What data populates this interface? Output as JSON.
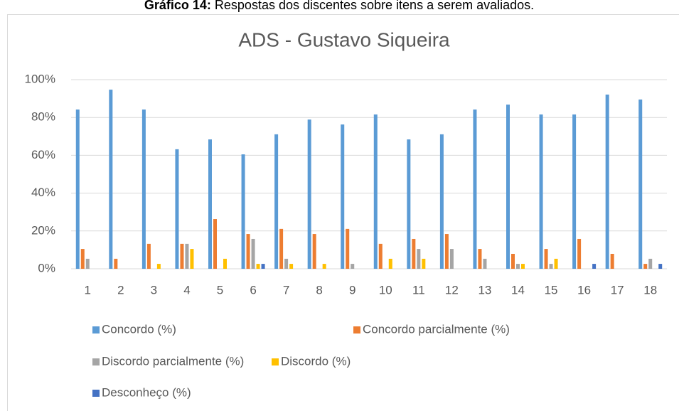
{
  "caption": {
    "label": "Gráfico 14:",
    "text": "Respostas dos discentes sobre itens a serem avaliados."
  },
  "chart_data": {
    "type": "bar",
    "title": "ADS - Gustavo Siqueira",
    "categories": [
      "1",
      "2",
      "3",
      "4",
      "5",
      "6",
      "7",
      "8",
      "9",
      "10",
      "11",
      "12",
      "13",
      "14",
      "15",
      "16",
      "17",
      "18"
    ],
    "series": [
      {
        "name": "Concordo (%)",
        "color": "#5b9bd5",
        "values": [
          84.2,
          94.7,
          84.2,
          63.2,
          68.4,
          60.5,
          71.1,
          78.9,
          76.3,
          81.6,
          68.4,
          71.1,
          84.2,
          86.8,
          81.6,
          81.6,
          92.1,
          89.5
        ]
      },
      {
        "name": "Concordo parcialmente (%)",
        "color": "#ed7d31",
        "values": [
          10.5,
          5.3,
          13.2,
          13.2,
          26.3,
          18.4,
          21.1,
          18.4,
          21.1,
          13.2,
          15.8,
          18.4,
          10.5,
          7.9,
          10.5,
          15.8,
          7.9,
          2.6
        ]
      },
      {
        "name": "Discordo parcialmente (%)",
        "color": "#a5a5a5",
        "values": [
          5.3,
          0,
          0,
          13.2,
          0,
          15.8,
          5.3,
          0,
          2.6,
          0,
          10.5,
          10.5,
          5.3,
          2.6,
          2.6,
          0,
          0,
          5.3
        ]
      },
      {
        "name": "Discordo (%)",
        "color": "#ffc000",
        "values": [
          0,
          0,
          2.6,
          10.5,
          5.3,
          2.6,
          2.6,
          2.6,
          0,
          5.3,
          5.3,
          0,
          0,
          2.6,
          5.3,
          0,
          0,
          0
        ]
      },
      {
        "name": "Desconheço (%)",
        "color": "#4472c4",
        "values": [
          0,
          0,
          0,
          0,
          0,
          2.6,
          0,
          0,
          0,
          0,
          0,
          0,
          0,
          0,
          0,
          2.6,
          0,
          2.6
        ]
      }
    ],
    "ylim": [
      0,
      100
    ],
    "yticks": [
      {
        "value": 0,
        "label": "0%"
      },
      {
        "value": 20,
        "label": "20%"
      },
      {
        "value": 40,
        "label": "40%"
      },
      {
        "value": 60,
        "label": "60%"
      },
      {
        "value": 80,
        "label": "80%"
      },
      {
        "value": 100,
        "label": "100%"
      }
    ],
    "grid": true,
    "legend": "bottom"
  }
}
